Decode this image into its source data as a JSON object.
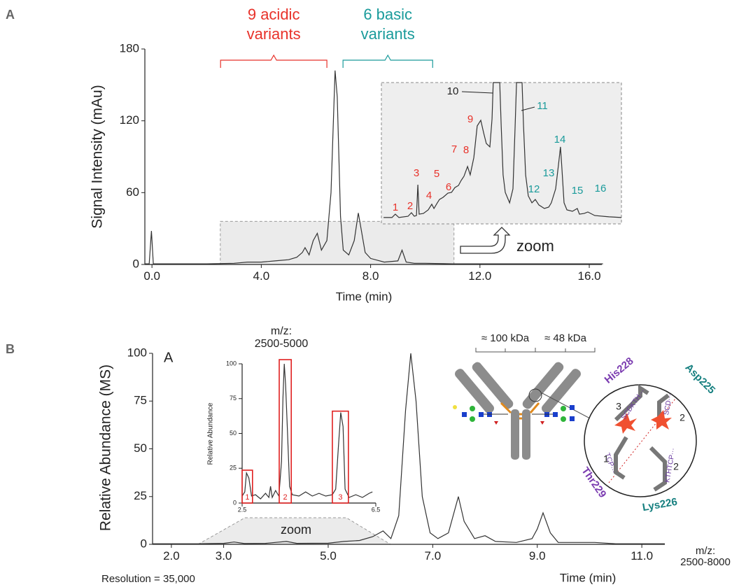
{
  "chart_data": [
    {
      "type": "line",
      "panel": "A",
      "xlabel": "Time (min)",
      "ylabel": "Signal Intensity (mAu)",
      "color": "#333333",
      "xlim": [
        -0.26,
        16.46
      ],
      "ylim": [
        0,
        180
      ],
      "xticks": [
        {
          "value": 0,
          "label": "0.0"
        },
        {
          "value": 4,
          "label": "4.0"
        },
        {
          "value": 8,
          "label": "8.0"
        },
        {
          "value": 12,
          "label": "12.0"
        },
        {
          "value": 16,
          "label": "16.0"
        }
      ],
      "yticks": [
        0,
        60,
        120,
        180
      ],
      "x": [
        -0.26,
        -0.1,
        -0.02,
        0.05,
        0.2,
        1,
        2,
        3,
        3.5,
        4,
        4.5,
        5,
        5.3,
        5.5,
        5.6,
        5.75,
        5.9,
        6.05,
        6.2,
        6.4,
        6.55,
        6.7,
        6.78,
        6.9,
        7.0,
        7.2,
        7.4,
        7.55,
        7.65,
        7.8,
        8.0,
        8.5,
        9.0,
        9.15,
        9.3,
        9.6,
        10,
        11,
        12,
        13,
        14,
        15,
        16,
        16.5
      ],
      "values": [
        0.5,
        0.5,
        28,
        0.5,
        0.5,
        0.5,
        0.5,
        1,
        2,
        2,
        3,
        4,
        6,
        10,
        14,
        8,
        20,
        26,
        12,
        20,
        60,
        162,
        140,
        40,
        12,
        8,
        20,
        43,
        30,
        10,
        5,
        2,
        3,
        12,
        2,
        1,
        1,
        0.5,
        0.5,
        0.5,
        0.5,
        0.5,
        0.5,
        0.5
      ],
      "zoom_box": {
        "x": [
          2.5,
          11.05
        ],
        "y": [
          0,
          36
        ]
      },
      "zoom_label": "zoom",
      "variant_groups": [
        {
          "lines": [
            "9 acidic",
            "variants"
          ],
          "color": "#e8322a",
          "range": [
            2.51,
            6.4
          ]
        },
        {
          "lines": [
            "6 basic",
            "variants"
          ],
          "color": "#1a9b9b",
          "range": [
            6.99,
            10.27
          ]
        }
      ]
    },
    {
      "type": "line",
      "color": "#333333",
      "xlim": [
        0,
        100
      ],
      "ylim": [
        0,
        100
      ],
      "x": [
        0.9,
        4.4,
        5.8,
        7.3,
        11.1,
        12.5,
        13.7,
        14.6,
        15.2,
        15.7,
        17.5,
        19.5,
        21.0,
        21.9,
        23.3,
        24.2,
        25.7,
        27.7,
        29.2,
        30.6,
        32.1,
        33.2,
        34.4,
        35.9,
        37.0,
        38.5,
        39.9,
        41.4,
        42.6,
        43.7,
        45.2,
        46.1,
        46.6,
        49.3,
        49.9,
        50.7,
        51.6,
        53.4,
        54.8,
        55.7,
        56.3,
        58.6,
        59.2,
        60.1,
        61.2,
        62.7,
        64.1,
        65.6,
        67.9,
        69.7,
        70.8,
        72.6,
        73.8,
        74.6,
        75.2,
        76.1,
        77.3,
        79.6,
        81.6,
        82.5,
        84.5,
        86.0,
        88.9,
        94.8,
        100
      ],
      "values": [
        4.5,
        4.5,
        6.9,
        4.5,
        5.4,
        7.9,
        5.4,
        5.9,
        27.7,
        6.9,
        7.4,
        9.9,
        13.9,
        10.9,
        14.9,
        17.3,
        18.8,
        21.8,
        22.3,
        25.7,
        27.2,
        30.7,
        33.7,
        40.6,
        34.7,
        47.0,
        69.3,
        73.3,
        64.4,
        56.9,
        54.5,
        74.3,
        100,
        100,
        69.3,
        34.7,
        22.3,
        14.9,
        24.8,
        69.3,
        100,
        100,
        69.3,
        34.7,
        19.8,
        14.9,
        17.3,
        13.4,
        10.9,
        11.9,
        14.9,
        24.8,
        42.1,
        54.5,
        39.6,
        14.9,
        9.9,
        8.9,
        10.9,
        6.9,
        7.4,
        8.4,
        5.9,
        5.0,
        4.5
      ],
      "peak_labels": [
        {
          "text": "1",
          "color": "#e8322a"
        },
        {
          "text": "2",
          "color": "#e8322a"
        },
        {
          "text": "3",
          "color": "#e8322a"
        },
        {
          "text": "4",
          "color": "#e8322a"
        },
        {
          "text": "5",
          "color": "#e8322a"
        },
        {
          "text": "6",
          "color": "#e8322a"
        },
        {
          "text": "7",
          "color": "#e8322a"
        },
        {
          "text": "8",
          "color": "#e8322a"
        },
        {
          "text": "9",
          "color": "#e8322a"
        },
        {
          "text": "10",
          "color": "#222222"
        },
        {
          "text": "11",
          "color": "#1a9b9b"
        },
        {
          "text": "12",
          "color": "#1a9b9b"
        },
        {
          "text": "13",
          "color": "#1a9b9b"
        },
        {
          "text": "14",
          "color": "#1a9b9b"
        },
        {
          "text": "15",
          "color": "#1a9b9b"
        },
        {
          "text": "16",
          "color": "#1a9b9b"
        }
      ]
    },
    {
      "type": "line",
      "panel": "B",
      "inner_label": "A",
      "xlabel": "Time (min)",
      "ylabel": "Relative Abundance (MS)",
      "color": "#333333",
      "xlim": [
        1.64,
        11.44
      ],
      "ylim": [
        0,
        100
      ],
      "xticks": [
        {
          "value": 2,
          "label": "2.0"
        },
        {
          "value": 3,
          "label": "3.0"
        },
        {
          "value": 5,
          "label": "5.0"
        },
        {
          "value": 7,
          "label": "7.0"
        },
        {
          "value": 9,
          "label": "9.0"
        },
        {
          "value": 11,
          "label": "11.0"
        }
      ],
      "yticks": [
        0,
        25,
        50,
        75,
        100
      ],
      "x": [
        1.64,
        2.5,
        3,
        3.2,
        3.4,
        3.8,
        4.2,
        4.4,
        5,
        5.3,
        5.6,
        5.85,
        6.05,
        6.2,
        6.35,
        6.48,
        6.58,
        6.68,
        6.8,
        6.95,
        7.1,
        7.3,
        7.49,
        7.6,
        7.8,
        8.0,
        8.2,
        8.6,
        8.9,
        9.0,
        9.11,
        9.25,
        9.4,
        9.8,
        10.1,
        10.5,
        11.44
      ],
      "values": [
        0.3,
        0.3,
        0.5,
        1.2,
        0.4,
        0.5,
        1.5,
        0.5,
        0.6,
        1.5,
        2,
        4,
        7,
        3,
        15,
        70,
        100,
        75,
        25,
        6,
        3,
        6,
        25,
        12,
        3,
        4.5,
        1.5,
        1,
        3,
        8,
        16.5,
        6,
        1,
        1,
        1,
        0.3,
        0.3
      ],
      "zoom_label": "zoom",
      "annotation_lines": [
        "m/z:",
        "2500-8000"
      ],
      "note": "Resolution = 35,000"
    },
    {
      "type": "line",
      "ylabel": "Relative Abundance",
      "title_lines": [
        "m/z:",
        "2500-5000"
      ],
      "color": "#333333",
      "xlim": [
        2.5,
        6.5
      ],
      "ylim": [
        0,
        100
      ],
      "xticks": [
        2.5,
        6.5
      ],
      "yticks": [
        0,
        25,
        50,
        75,
        100
      ],
      "x": [
        2.5,
        2.58,
        2.63,
        2.7,
        2.78,
        2.9,
        3.05,
        3.2,
        3.3,
        3.35,
        3.4,
        3.5,
        3.6,
        3.68,
        3.72,
        3.76,
        3.8,
        3.85,
        3.92,
        4.0,
        4.2,
        4.4,
        4.6,
        4.8,
        5.0,
        5.2,
        5.3,
        5.38,
        5.45,
        5.52,
        5.58,
        5.7,
        5.9,
        6.1,
        6.3,
        6.4
      ],
      "values": [
        5,
        8,
        21.6,
        18,
        5,
        6,
        3,
        7,
        4,
        12,
        4,
        9,
        5,
        30,
        75,
        100,
        85,
        55,
        12,
        6,
        5,
        8,
        5,
        7,
        5,
        6,
        10,
        40,
        65,
        55,
        10,
        4,
        6,
        4,
        7,
        8
      ],
      "highlight_color": "#e02020",
      "highlights": [
        {
          "label": "1",
          "x": [
            2.5,
            2.81
          ],
          "y": [
            0,
            23.6
          ]
        },
        {
          "label": "2",
          "x": [
            3.61,
            3.97
          ],
          "y": [
            0,
            103
          ]
        },
        {
          "label": "3",
          "x": [
            5.2,
            5.68
          ],
          "y": [
            0,
            66
          ]
        }
      ]
    }
  ],
  "diagram": {
    "mass_labels": [
      "≈ 100 kDa",
      "≈ 48 kDa"
    ],
    "residues": [
      "His228",
      "Asp225",
      "Thr229",
      "Lys226"
    ],
    "fragments": [
      "SCDKTH···",
      "SCD···",
      "TCP···",
      "KTHTCP···"
    ],
    "steps": [
      "3",
      "2",
      "1",
      "2"
    ]
  }
}
